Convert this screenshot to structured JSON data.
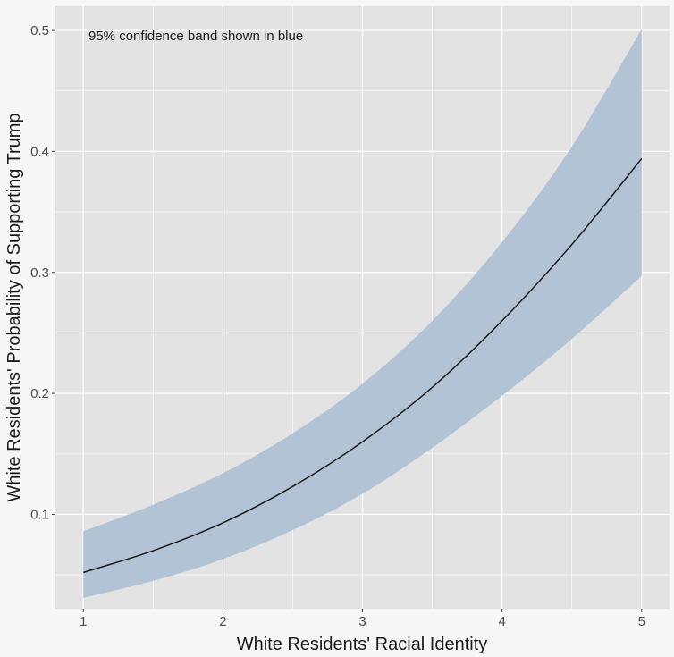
{
  "chart_data": {
    "type": "line",
    "xlabel": "White Residents' Racial Identity",
    "ylabel": "White Residents' Probability of Supporting Trump",
    "annotation": "95% confidence band shown in blue",
    "xlim": [
      0.8,
      5.2
    ],
    "ylim": [
      0.022,
      0.52
    ],
    "x_ticks": [
      1,
      2,
      3,
      4,
      5
    ],
    "y_ticks": [
      0.1,
      0.2,
      0.3,
      0.4,
      0.5
    ],
    "x_tick_labels": [
      "1",
      "2",
      "3",
      "4",
      "5"
    ],
    "y_tick_labels": [
      "0.1",
      "0.2",
      "0.3",
      "0.4",
      "0.5"
    ],
    "grid": true,
    "x": [
      1,
      1.5,
      2,
      2.5,
      3,
      3.5,
      4,
      4.5,
      5
    ],
    "series": [
      {
        "values": [
          0.052,
          0.07,
          0.093,
          0.123,
          0.16,
          0.205,
          0.26,
          0.323,
          0.394
        ],
        "color": "#1a1a1a"
      }
    ],
    "confidence_band": {
      "lower": [
        0.031,
        0.045,
        0.063,
        0.087,
        0.117,
        0.155,
        0.198,
        0.245,
        0.297
      ],
      "upper": [
        0.086,
        0.108,
        0.134,
        0.167,
        0.208,
        0.26,
        0.325,
        0.404,
        0.501
      ],
      "color": "#b3c3d6"
    },
    "colors": {
      "panel": "#e3e3e3",
      "grid": "#ffffff",
      "background": "#f7f7f7"
    }
  }
}
